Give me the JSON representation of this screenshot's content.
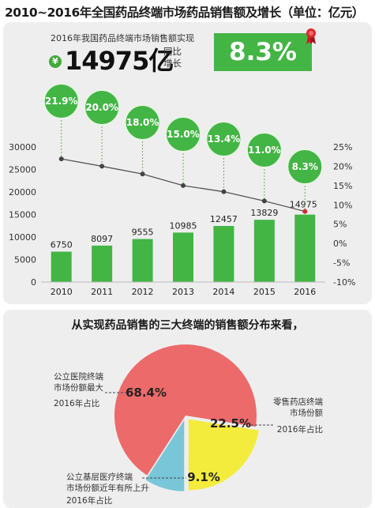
{
  "title": "2010~2016年全国药品终端市场药品销售额及增长（单位：亿元）",
  "headline": {
    "note": "2016年我国药品终端市场销售额实现",
    "currency_icon": "yuan-icon",
    "value_text": "14975亿",
    "yoy_label": "同比增长",
    "growth_text": "8.3%",
    "badge_icon": "award-ribbon-icon"
  },
  "colors": {
    "bar": "#43b545",
    "bubble": "#43b545",
    "line": "#555555",
    "pie_hospital": "#ec6a6a",
    "pie_retail": "#f4ec3c",
    "pie_grassroots": "#79c6d8"
  },
  "chart_data": [
    {
      "type": "bar",
      "categories": [
        "2010",
        "2011",
        "2012",
        "2013",
        "2014",
        "2015",
        "2016"
      ],
      "series": [
        {
          "values": [
            6750,
            8097,
            9555,
            10985,
            12457,
            13829,
            14975
          ]
        },
        {
          "type": "line",
          "axis": "right",
          "values": [
            21.9,
            20.0,
            18.0,
            15.0,
            13.4,
            11.0,
            8.3
          ]
        }
      ],
      "bar_labels": [
        "6750",
        "8097",
        "9555",
        "10985",
        "12457",
        "13829",
        "14975"
      ],
      "bubble_labels": [
        "21.9%",
        "20.0%",
        "18.0%",
        "15.0%",
        "13.4%",
        "11.0%",
        "8.3%"
      ],
      "y_ticks": [
        "0",
        "5000",
        "10000",
        "15000",
        "20000",
        "25000",
        "30000"
      ],
      "y2_ticks": [
        "-10%",
        "-5%",
        "0%",
        "5%",
        "10%",
        "15%",
        "20%",
        "25%"
      ],
      "ylim": [
        0,
        30000
      ],
      "y2lim": [
        -10,
        25
      ],
      "grid": false
    },
    {
      "type": "pie",
      "title": "从实现药品销售的三大终端的销售额分布来看，",
      "labels": [
        "公立医院终端",
        "零售药店终端",
        "公立基层医疗终端"
      ],
      "values": [
        68.4,
        22.5,
        9.1
      ],
      "value_labels": [
        "68.4%",
        "22.5%",
        "9.1%"
      ]
    }
  ],
  "annotations": {
    "hospital": {
      "line1": "公立医院终端",
      "line2": "市场份额最大",
      "line3": "2016年占比"
    },
    "retail": {
      "line1": "零售药店终端",
      "line2": "市场份额",
      "line3": "2016年占比"
    },
    "grassroots": {
      "line1": "公立基层医疗终端",
      "line2": "市场份额近年有所上升",
      "line3": "2016年占比"
    }
  }
}
